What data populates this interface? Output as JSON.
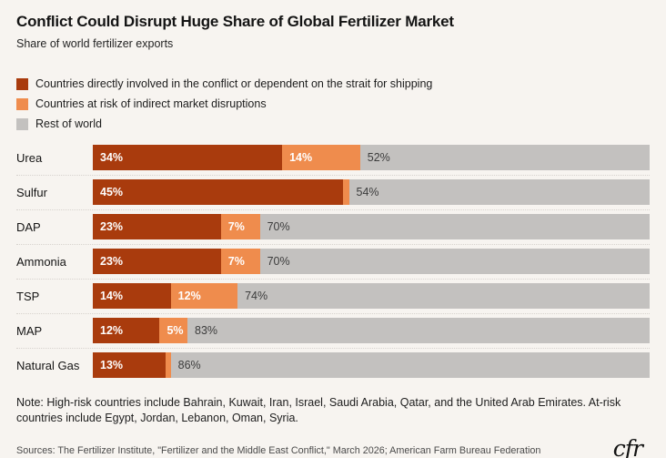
{
  "header": {
    "title": "Conflict Could Disrupt Huge Share of Global Fertilizer Market",
    "subtitle": "Share of world fertilizer exports"
  },
  "colors": {
    "direct": "#a93b0d",
    "indirect": "#ef8c4d",
    "rest": "#c3c1bf",
    "background": "#f7f4f0"
  },
  "legend": {
    "items": [
      {
        "key": "direct",
        "label": "Countries directly involved in the conflict or dependent on the strait for shipping"
      },
      {
        "key": "indirect",
        "label": "Countries at risk of indirect market disruptions"
      },
      {
        "key": "rest",
        "label": "Rest of world"
      }
    ]
  },
  "chart_data": {
    "type": "bar",
    "orientation": "horizontal",
    "stacked": true,
    "unit": "%",
    "xlim": [
      0,
      100
    ],
    "grid": false,
    "legend_position": "top",
    "title": "Conflict Could Disrupt Huge Share of Global Fertilizer Market",
    "subtitle": "Share of world fertilizer exports",
    "categories": [
      "Urea",
      "Sulfur",
      "DAP",
      "Ammonia",
      "TSP",
      "MAP",
      "Natural Gas"
    ],
    "series": [
      {
        "key": "direct",
        "name": "Countries directly involved in the conflict or dependent on the strait for shipping",
        "color": "#a93b0d",
        "values": [
          34,
          45,
          23,
          23,
          14,
          12,
          13
        ],
        "labels": [
          "34%",
          "45%",
          "23%",
          "23%",
          "14%",
          "12%",
          "13%"
        ]
      },
      {
        "key": "indirect",
        "name": "Countries at risk of indirect market disruptions",
        "color": "#ef8c4d",
        "values": [
          14,
          1,
          7,
          7,
          12,
          5,
          1
        ],
        "labels": [
          "14%",
          "",
          "7%",
          "7%",
          "12%",
          "5%",
          ""
        ]
      },
      {
        "key": "rest",
        "name": "Rest of world",
        "color": "#c3c1bf",
        "values": [
          52,
          54,
          70,
          70,
          74,
          83,
          86
        ],
        "labels": [
          "52%",
          "54%",
          "70%",
          "70%",
          "74%",
          "83%",
          "86%"
        ]
      }
    ]
  },
  "footer": {
    "note": "Note: High-risk countries include Bahrain, Kuwait, Iran, Israel, Saudi Arabia, Qatar, and the United Arab Emirates. At-risk countries include Egypt, Jordan, Lebanon, Oman, Syria.",
    "sources": "Sources: The Fertilizer Institute, \"Fertilizer and the Middle East Conflict,\" March 2026; American Farm Bureau Federation",
    "logo_text": "cfr"
  }
}
